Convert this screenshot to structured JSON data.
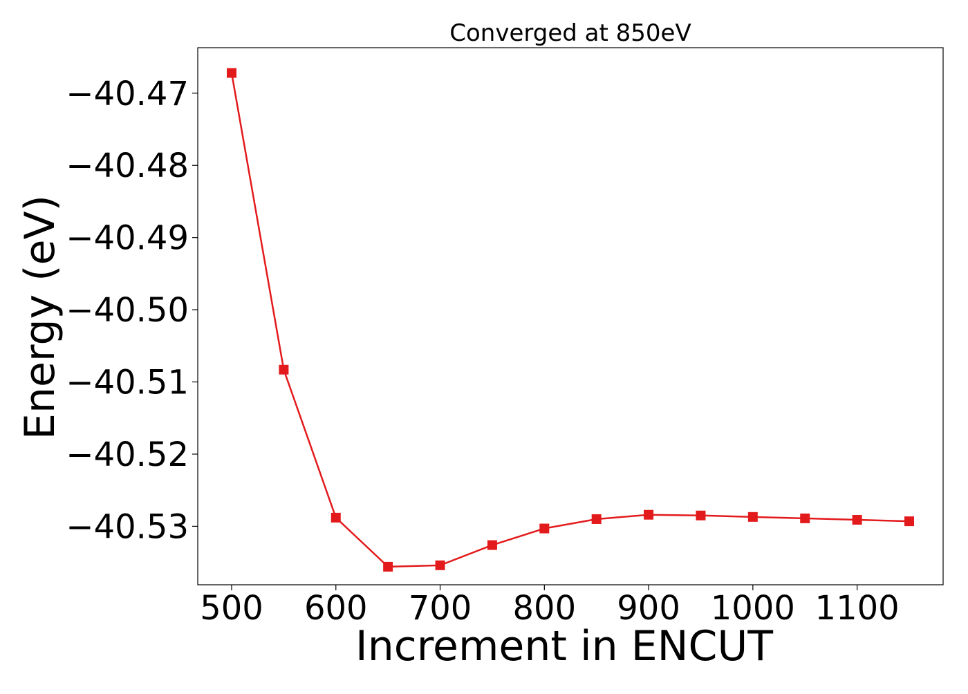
{
  "chart_data": {
    "type": "line",
    "title": "Converged at 850eV",
    "xlabel": "Increment in ENCUT",
    "ylabel": "Energy (eV)",
    "x": [
      500,
      550,
      600,
      650,
      700,
      750,
      800,
      850,
      900,
      950,
      1000,
      1050,
      1100,
      1150
    ],
    "series": [
      {
        "marker": "square",
        "color": "#e31a1c",
        "values": [
          -40.4672,
          -40.5083,
          -40.5288,
          -40.5356,
          -40.5354,
          -40.5326,
          -40.5303,
          -40.529,
          -40.5284,
          -40.5285,
          -40.5287,
          -40.5289,
          -40.5291,
          -40.5293
        ]
      }
    ],
    "xticks": [
      500,
      600,
      700,
      800,
      900,
      1000,
      1100
    ],
    "xtick_labels": [
      "500",
      "600",
      "700",
      "800",
      "900",
      "1000",
      "1100"
    ],
    "yticks": [
      -40.47,
      -40.48,
      -40.49,
      -40.5,
      -40.51,
      -40.52,
      -40.53
    ],
    "ytick_labels": [
      "−40.47",
      "−40.48",
      "−40.49",
      "−40.50",
      "−40.51",
      "−40.52",
      "−40.53"
    ],
    "xlim": [
      467.5,
      1182.5
    ],
    "ylim": [
      -40.5381,
      -40.4637
    ],
    "grid": false,
    "legend": "none"
  }
}
